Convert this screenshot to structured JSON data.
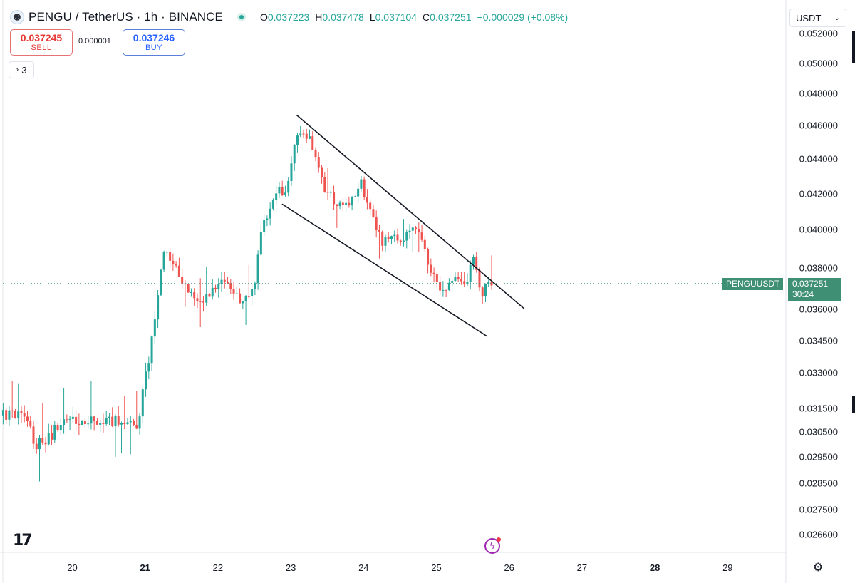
{
  "header": {
    "symbol_title": "PENGU / TetherUS · 1h · BINANCE",
    "ohlc": [
      {
        "key": "O",
        "value": "0.037223"
      },
      {
        "key": "H",
        "value": "0.037478"
      },
      {
        "key": "L",
        "value": "0.037104"
      },
      {
        "key": "C",
        "value": "0.037251"
      }
    ],
    "change": "+0.000029 (+0.08%)"
  },
  "trade": {
    "sell_price": "0.037245",
    "sell_label": "SELL",
    "spread": "0.000001",
    "buy_price": "0.037246",
    "buy_label": "BUY"
  },
  "indicators": {
    "count": "3"
  },
  "currency": {
    "label": "USDT"
  },
  "last_price": {
    "symbol": "PENGUUSDT",
    "price": "0.037251",
    "countdown": "30:24",
    "value": 0.037251
  },
  "chart_data": {
    "type": "candlestick",
    "y_ticks": [
      "0.052000",
      "0.050000",
      "0.048000",
      "0.046000",
      "0.044000",
      "0.042000",
      "0.040000",
      "0.038000",
      "0.036000",
      "0.034500",
      "0.033000",
      "0.031500",
      "0.030500",
      "0.029500",
      "0.028500",
      "0.027500",
      "0.026600"
    ],
    "x_ticks": [
      {
        "label": "20",
        "bold": false
      },
      {
        "label": "21",
        "bold": true
      },
      {
        "label": "22",
        "bold": false
      },
      {
        "label": "23",
        "bold": false
      },
      {
        "label": "24",
        "bold": false
      },
      {
        "label": "25",
        "bold": false
      },
      {
        "label": "26",
        "bold": false
      },
      {
        "label": "27",
        "bold": false
      },
      {
        "label": "28",
        "bold": true
      },
      {
        "label": "29",
        "bold": false
      }
    ],
    "waypoints": [
      [
        19.05,
        0.0312
      ],
      [
        19.35,
        0.0313
      ],
      [
        19.55,
        0.0299
      ],
      [
        19.75,
        0.0304
      ],
      [
        19.95,
        0.0311
      ],
      [
        20.2,
        0.0309
      ],
      [
        20.45,
        0.031
      ],
      [
        20.7,
        0.0309
      ],
      [
        20.95,
        0.0309
      ],
      [
        21.15,
        0.0348
      ],
      [
        21.3,
        0.039
      ],
      [
        21.45,
        0.0382
      ],
      [
        21.6,
        0.037
      ],
      [
        21.8,
        0.0362
      ],
      [
        22.0,
        0.0371
      ],
      [
        22.15,
        0.0373
      ],
      [
        22.35,
        0.0364
      ],
      [
        22.55,
        0.0372
      ],
      [
        22.65,
        0.0402
      ],
      [
        22.75,
        0.0412
      ],
      [
        22.88,
        0.0424
      ],
      [
        22.98,
        0.0419
      ],
      [
        23.13,
        0.0456
      ],
      [
        23.3,
        0.0451
      ],
      [
        23.5,
        0.0424
      ],
      [
        23.65,
        0.0415
      ],
      [
        23.85,
        0.0413
      ],
      [
        24.0,
        0.0427
      ],
      [
        24.2,
        0.0403
      ],
      [
        24.3,
        0.0392
      ],
      [
        24.45,
        0.0398
      ],
      [
        24.6,
        0.0392
      ],
      [
        24.7,
        0.0405
      ],
      [
        24.9,
        0.0387
      ],
      [
        25.0,
        0.0375
      ],
      [
        25.15,
        0.0368
      ],
      [
        25.3,
        0.0376
      ],
      [
        25.45,
        0.0373
      ],
      [
        25.55,
        0.0385
      ],
      [
        25.65,
        0.0367
      ],
      [
        25.75,
        0.0372
      ]
    ],
    "trendlines": [
      {
        "from": [
          23.08,
          0.04665
        ],
        "to": [
          26.2,
          0.03605
        ]
      },
      {
        "from": [
          22.88,
          0.04143
        ],
        "to": [
          25.7,
          0.0347
        ]
      }
    ]
  }
}
